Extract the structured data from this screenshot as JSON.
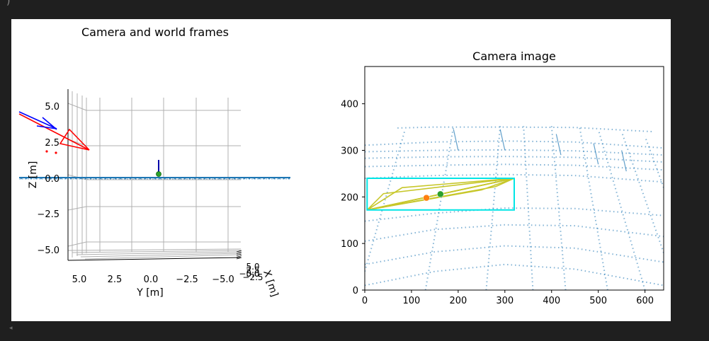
{
  "ui": {
    "corner_glyph": ")",
    "scroll_arrow": "◂",
    "background": "#1f1f1f",
    "panel_color": "#ffffff"
  },
  "chart_data": [
    {
      "type": "3d-line",
      "title": "Camera and world frames",
      "ylabel": "Y [m]",
      "zlabel": "Z [m]",
      "xlabel": "X [m]",
      "y_ticks": [
        "5.0",
        "2.5",
        "0.0",
        "−2.5",
        "−5.0"
      ],
      "z_ticks": [
        "5.0",
        "2.5",
        "0.0",
        "−2.5",
        "−5.0"
      ],
      "x_ticks": [
        "5.0",
        "2.5",
        "0.0",
        "−2.5",
        "−5.0"
      ],
      "ylim": [
        6,
        -6
      ],
      "zlim": [
        -6,
        6
      ],
      "series": [
        {
          "name": "ground grid",
          "color": "#1f77b4"
        },
        {
          "name": "camera frustum",
          "color": "#ff0000"
        },
        {
          "name": "camera axes",
          "color": "#0000ff"
        },
        {
          "name": "camera points",
          "color": "#ff0000"
        },
        {
          "name": "world origin",
          "color": "#0000aa"
        }
      ],
      "origin_marker": {
        "y": 0,
        "z": 0,
        "color": "#2ca02c"
      },
      "grid_points_z": 0
    },
    {
      "type": "scatter",
      "title": "Camera image",
      "xlim": [
        0,
        640
      ],
      "ylim": [
        0,
        480
      ],
      "x_ticks": [
        0,
        100,
        200,
        300,
        400,
        500,
        600
      ],
      "y_ticks": [
        0,
        100,
        200,
        300,
        400
      ],
      "grid_color": "#1f77b4",
      "bbox": {
        "x0": 5,
        "y0": 172,
        "x1": 320,
        "y1": 240,
        "color": "#00e5e5"
      },
      "polygons": [
        {
          "color": "#c7c72a",
          "points": [
            [
              5,
              172
            ],
            [
              320,
              240
            ],
            [
              80,
              220
            ],
            [
              5,
              172
            ]
          ]
        },
        {
          "color": "#c7c72a",
          "points": [
            [
              5,
              172
            ],
            [
              320,
              240
            ],
            [
              40,
              207
            ],
            [
              5,
              172
            ]
          ]
        },
        {
          "color": "#c7c72a",
          "points": [
            [
              5,
              172
            ],
            [
              320,
              240
            ],
            [
              250,
              215
            ],
            [
              5,
              172
            ]
          ]
        },
        {
          "color": "#c7c72a",
          "points": [
            [
              5,
              172
            ],
            [
              320,
              240
            ],
            [
              280,
              222
            ],
            [
              5,
              172
            ]
          ]
        }
      ],
      "markers": [
        {
          "name": "projected point",
          "x": 132,
          "y": 198,
          "color": "#ff7f0e"
        },
        {
          "name": "target point",
          "x": 162,
          "y": 206,
          "color": "#2ca02c"
        }
      ]
    }
  ]
}
